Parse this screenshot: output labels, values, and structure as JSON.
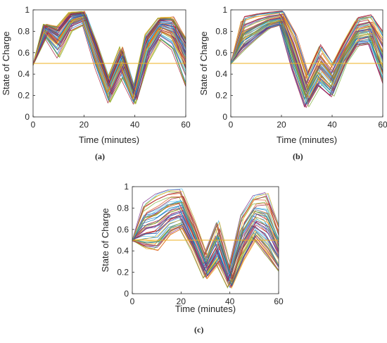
{
  "panels": [
    {
      "caption": "(a)",
      "xlabel": "Time (minutes)",
      "ylabel": "State of Charge",
      "xticks": [
        "0",
        "20",
        "40",
        "60"
      ],
      "yticks": [
        "0",
        "0.2",
        "0.4",
        "0.6",
        "0.8",
        "1"
      ]
    },
    {
      "caption": "(b)",
      "xlabel": "Time (minutes)",
      "ylabel": "State of Charge",
      "xticks": [
        "0",
        "20",
        "40",
        "60"
      ],
      "yticks": [
        "0",
        "0.2",
        "0.4",
        "0.6",
        "0.8",
        "1"
      ]
    },
    {
      "caption": "(c)",
      "xlabel": "Time (minutes)",
      "ylabel": "State of Charge",
      "xticks": [
        "0",
        "20",
        "40",
        "60"
      ],
      "yticks": [
        "0",
        "0.2",
        "0.4",
        "0.6",
        "0.8",
        "1"
      ]
    }
  ],
  "chart_data": [
    {
      "type": "line",
      "xlabel": "Time (minutes)",
      "ylabel": "State of Charge",
      "xlim": [
        0,
        60
      ],
      "ylim": [
        0,
        1
      ],
      "grid": false,
      "colors": [
        "#0072BD",
        "#D95319",
        "#EDB120",
        "#7E2F8E",
        "#77AC30",
        "#4DBEEE",
        "#A2142F"
      ],
      "reference_line": {
        "y": 0.5,
        "color": "#EDB120"
      },
      "x": [
        0,
        5,
        10,
        15,
        20,
        25,
        30,
        35,
        40,
        45,
        50,
        55,
        60
      ],
      "envelope": {
        "low": [
          0.48,
          0.74,
          0.55,
          0.8,
          0.86,
          0.45,
          0.13,
          0.36,
          0.12,
          0.5,
          0.72,
          0.62,
          0.28
        ],
        "mid": [
          0.49,
          0.83,
          0.62,
          0.95,
          0.97,
          0.58,
          0.22,
          0.48,
          0.18,
          0.62,
          0.85,
          0.87,
          0.5
        ],
        "high": [
          0.5,
          0.87,
          0.85,
          0.98,
          0.99,
          0.7,
          0.35,
          0.66,
          0.24,
          0.78,
          0.93,
          0.94,
          0.75
        ]
      }
    },
    {
      "type": "line",
      "xlabel": "Time (minutes)",
      "ylabel": "State of Charge",
      "xlim": [
        0,
        60
      ],
      "ylim": [
        0,
        1
      ],
      "grid": false,
      "colors": [
        "#0072BD",
        "#D95319",
        "#EDB120",
        "#7E2F8E",
        "#77AC30",
        "#4DBEEE",
        "#A2142F"
      ],
      "reference_line": {
        "y": 0.5,
        "color": "#EDB120"
      },
      "x": [
        0,
        5,
        10,
        15,
        20,
        25,
        30,
        35,
        40,
        45,
        50,
        55,
        60
      ],
      "envelope": {
        "low": [
          0.5,
          0.62,
          0.72,
          0.82,
          0.86,
          0.42,
          0.08,
          0.28,
          0.18,
          0.48,
          0.66,
          0.68,
          0.3
        ],
        "mid": [
          0.5,
          0.82,
          0.9,
          0.95,
          0.97,
          0.58,
          0.24,
          0.58,
          0.32,
          0.62,
          0.88,
          0.93,
          0.6
        ],
        "high": [
          0.51,
          0.94,
          0.97,
          0.98,
          0.99,
          0.78,
          0.4,
          0.68,
          0.5,
          0.72,
          0.93,
          0.96,
          0.8
        ]
      }
    },
    {
      "type": "line",
      "xlabel": "Time (minutes)",
      "ylabel": "State of Charge",
      "xlim": [
        0,
        60
      ],
      "ylim": [
        0,
        1
      ],
      "grid": false,
      "colors": [
        "#0072BD",
        "#D95319",
        "#EDB120",
        "#7E2F8E",
        "#77AC30",
        "#4DBEEE",
        "#A2142F"
      ],
      "reference_line": {
        "y": 0.5,
        "color": "#EDB120"
      },
      "x": [
        0,
        5,
        10,
        15,
        20,
        25,
        30,
        35,
        40,
        45,
        50,
        55,
        60
      ],
      "envelope": {
        "low": [
          0.48,
          0.42,
          0.4,
          0.55,
          0.6,
          0.4,
          0.14,
          0.28,
          0.05,
          0.3,
          0.5,
          0.35,
          0.2
        ],
        "mid": [
          0.5,
          0.78,
          0.85,
          0.92,
          0.94,
          0.56,
          0.25,
          0.6,
          0.14,
          0.58,
          0.85,
          0.9,
          0.45
        ],
        "high": [
          0.53,
          0.85,
          0.93,
          0.97,
          0.98,
          0.7,
          0.38,
          0.68,
          0.25,
          0.75,
          0.92,
          0.95,
          0.65
        ]
      }
    }
  ]
}
